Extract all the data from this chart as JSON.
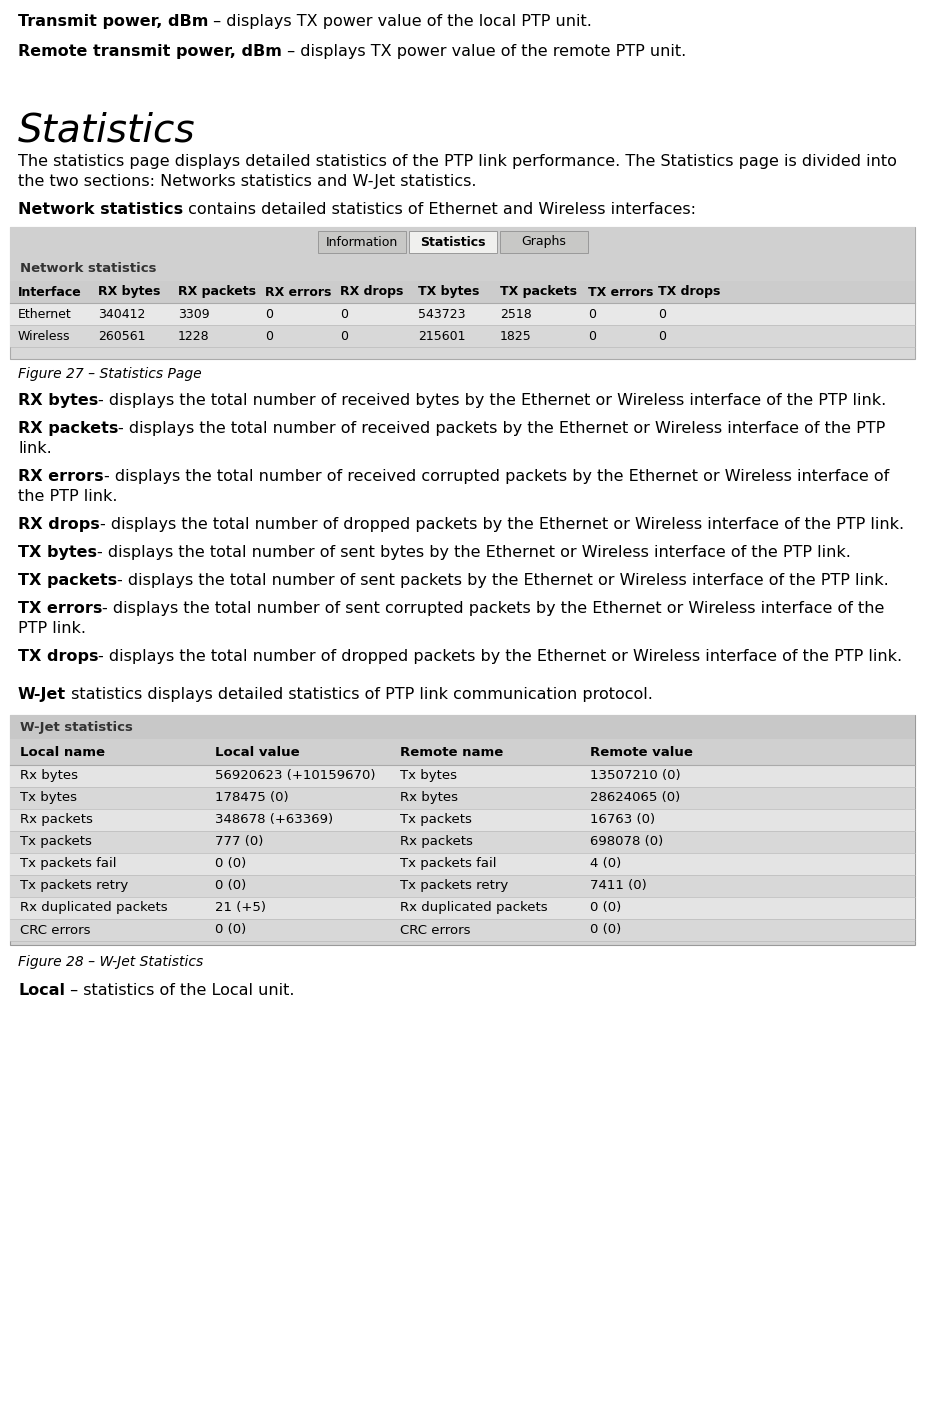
{
  "bg_color": "#ffffff",
  "line1_bold": "Transmit power, dBm",
  "line1_rest": " – displays TX power value of the local PTP unit.",
  "line2_bold": "Remote transmit power, dBm",
  "line2_rest": " – displays TX power value of the remote PTP unit.",
  "title_text": "Statistics",
  "intro_text": "The statistics page displays detailed statistics of the PTP link performance. The Statistics page is divided into the two sections: Networks statistics and W-Jet statistics.",
  "netstat_bold": "Network statistics",
  "netstat_rest": " contains detailed statistics of Ethernet and Wireless interfaces:",
  "tab_buttons": [
    "Information",
    "Statistics",
    "Graphs"
  ],
  "tab_active": "Statistics",
  "net_table_title": "Network statistics",
  "net_headers": [
    "Interface",
    "RX bytes",
    "RX packets",
    "RX errors",
    "RX drops",
    "TX bytes",
    "TX packets",
    "TX errors",
    "TX drops"
  ],
  "net_rows": [
    [
      "Ethernet",
      "340412",
      "3309",
      "0",
      "0",
      "543723",
      "2518",
      "0",
      "0"
    ],
    [
      "Wireless",
      "260561",
      "1228",
      "0",
      "0",
      "215601",
      "1825",
      "0",
      "0"
    ]
  ],
  "fig27_caption": "Figure 27 – Statistics Page",
  "bullets": [
    [
      "RX bytes",
      " - displays the total number of received bytes by the Ethernet or Wireless interface of the PTP link."
    ],
    [
      "RX packets",
      " - displays the total number of received packets by the Ethernet or Wireless interface of the PTP link."
    ],
    [
      "RX errors",
      " - displays the total number of received corrupted packets by the Ethernet or Wireless interface of the PTP link."
    ],
    [
      "RX drops",
      " - displays the total number of dropped packets by the Ethernet or Wireless interface of the PTP link."
    ],
    [
      "TX bytes",
      " - displays the total number of sent bytes by the Ethernet or Wireless interface of the PTP link."
    ],
    [
      "TX packets",
      " - displays the total number of sent packets by the Ethernet or Wireless interface of the PTP link."
    ],
    [
      "TX errors",
      " - displays the total number of sent corrupted packets by the Ethernet or Wireless interface of the PTP link."
    ],
    [
      "TX drops",
      " - displays the total number of dropped packets by the Ethernet or Wireless interface of the PTP link."
    ]
  ],
  "wjet_intro_bold": "W-Jet",
  "wjet_intro_rest": " statistics displays detailed statistics of PTP link communication protocol.",
  "wjet_title": "W-Jet statistics",
  "wjet_headers": [
    "Local name",
    "Local value",
    "Remote name",
    "Remote value"
  ],
  "wjet_rows": [
    [
      "Rx bytes",
      "56920623 (+10159670)",
      "Tx bytes",
      "13507210 (0)"
    ],
    [
      "Tx bytes",
      "178475 (0)",
      "Rx bytes",
      "28624065 (0)"
    ],
    [
      "Rx packets",
      "348678 (+63369)",
      "Tx packets",
      "16763 (0)"
    ],
    [
      "Tx packets",
      "777 (0)",
      "Rx packets",
      "698078 (0)"
    ],
    [
      "Tx packets fail",
      "0 (0)",
      "Tx packets fail",
      "4 (0)"
    ],
    [
      "Tx packets retry",
      "0 (0)",
      "Tx packets retry",
      "7411 (0)"
    ],
    [
      "Rx duplicated packets",
      "21 (+5)",
      "Rx duplicated packets",
      "0 (0)"
    ],
    [
      "CRC errors",
      "0 (0)",
      "CRC errors",
      "0 (0)"
    ]
  ],
  "fig28_caption": "Figure 28 – W-Jet Statistics",
  "local_bold": "Local",
  "local_rest": " – statistics of the Local unit.",
  "body_fs": 11.5,
  "caption_fs": 10,
  "title_fs": 28,
  "table_fs": 9.5,
  "wjet_data_fs": 9.5
}
